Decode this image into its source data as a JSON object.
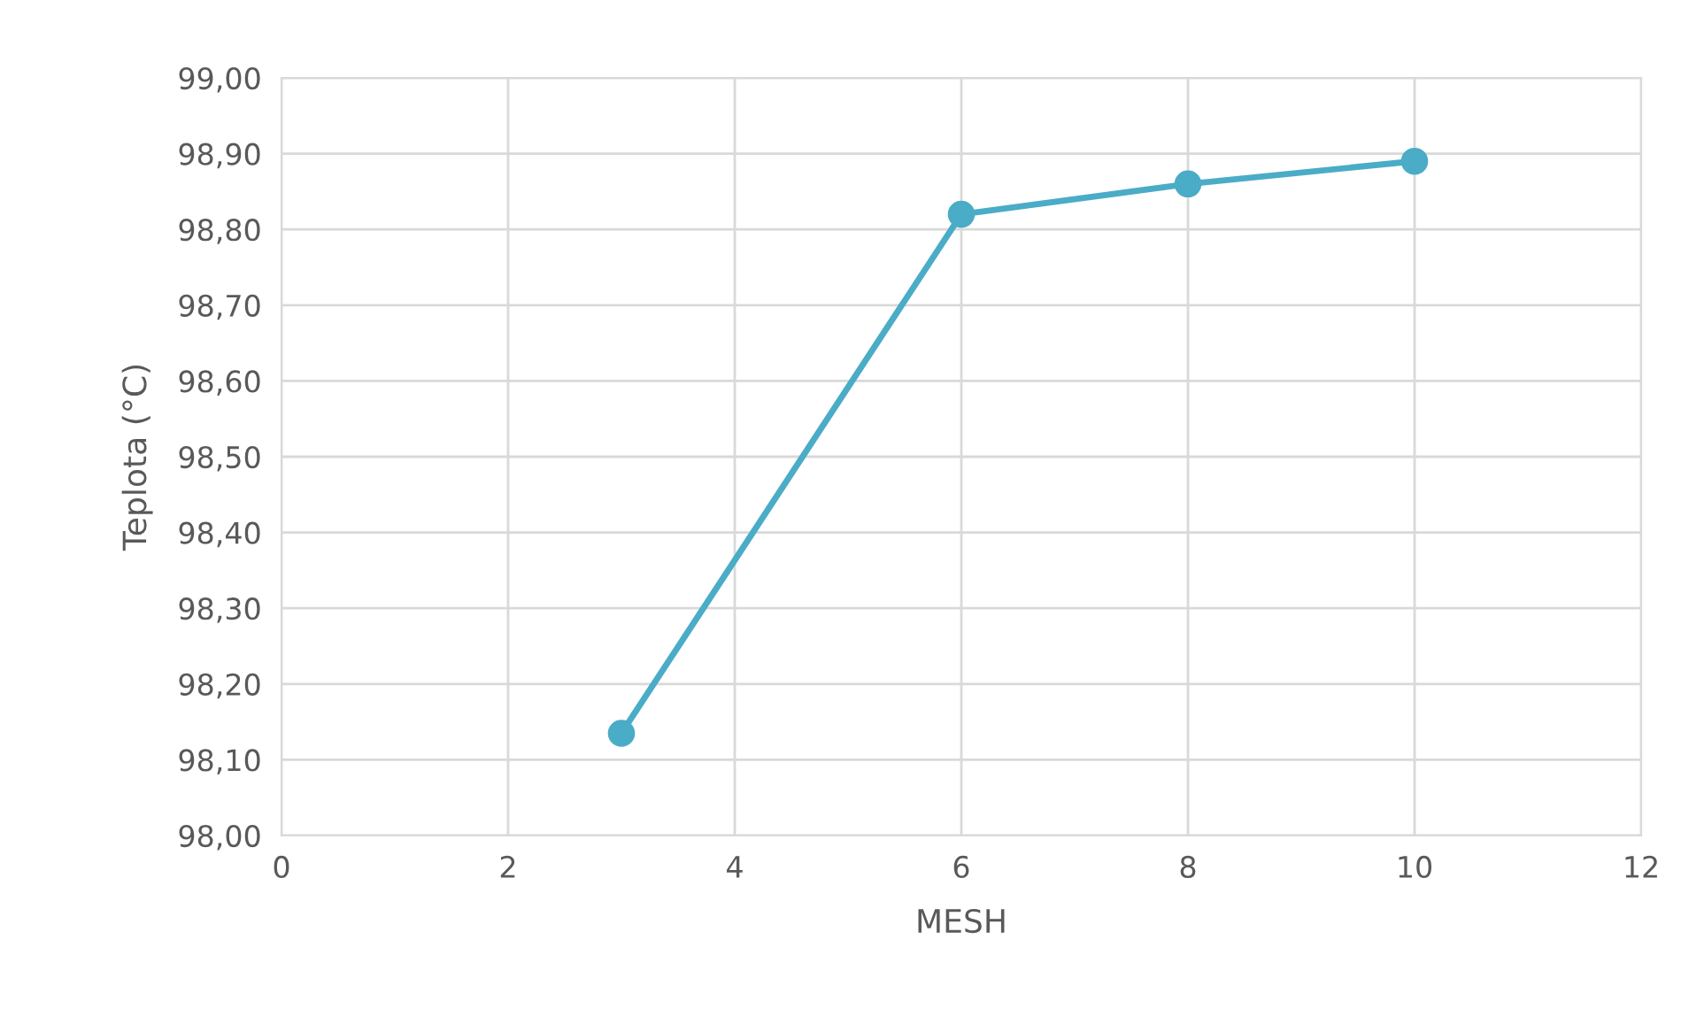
{
  "chart_data": {
    "type": "line",
    "xlabel": "MESH",
    "ylabel": "Teplota (°C)",
    "x": [
      3,
      6,
      8,
      10
    ],
    "series": [
      {
        "color": "#4aacc6",
        "values": [
          98.135,
          98.82,
          98.86,
          98.89
        ]
      }
    ],
    "xlim": [
      0,
      12
    ],
    "xticks": [
      0,
      2,
      4,
      6,
      8,
      10,
      12
    ],
    "ylim": [
      98.0,
      99.0
    ],
    "yticks": [
      {
        "value": 98.0,
        "label": "98,00"
      },
      {
        "value": 98.1,
        "label": "98,10"
      },
      {
        "value": 98.2,
        "label": "98,20"
      },
      {
        "value": 98.3,
        "label": "98,30"
      },
      {
        "value": 98.4,
        "label": "98,40"
      },
      {
        "value": 98.5,
        "label": "98,50"
      },
      {
        "value": 98.6,
        "label": "98,60"
      },
      {
        "value": 98.7,
        "label": "98,70"
      },
      {
        "value": 98.8,
        "label": "98,80"
      },
      {
        "value": 98.9,
        "label": "98,90"
      },
      {
        "value": 99.0,
        "label": "99,00"
      }
    ],
    "grid": true,
    "marker": "circle",
    "line_style": "solid",
    "legend": false
  }
}
